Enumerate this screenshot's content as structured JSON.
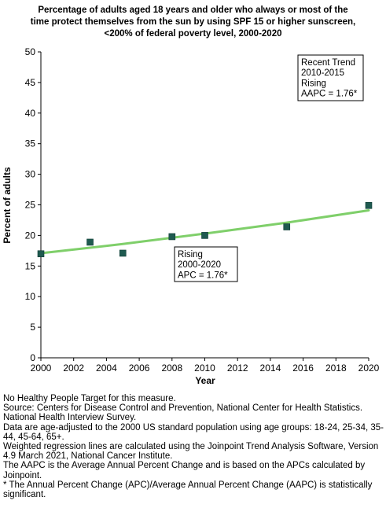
{
  "chart_data": {
    "type": "scatter",
    "title_lines": [
      "Percentage of adults aged 18 years and older who always or most of the",
      "time protect themselves from the sun by using SPF 15 or higher sunscreen,",
      "<200% of federal poverty level,  2000-2020"
    ],
    "xlabel": "Year",
    "ylabel": "Percent of adults",
    "xlim": [
      2000,
      2020
    ],
    "ylim": [
      0,
      50
    ],
    "xticks": [
      2000,
      2002,
      2004,
      2006,
      2008,
      2010,
      2012,
      2014,
      2016,
      2018,
      2020
    ],
    "yticks": [
      0,
      5,
      10,
      15,
      20,
      25,
      30,
      35,
      40,
      45,
      50
    ],
    "grid": false,
    "series": [
      {
        "kind": "points",
        "color": "#1f5a50",
        "points": [
          {
            "x": 2000,
            "y": 17.0
          },
          {
            "x": 2003,
            "y": 18.9
          },
          {
            "x": 2005,
            "y": 17.1
          },
          {
            "x": 2008,
            "y": 19.8
          },
          {
            "x": 2010,
            "y": 20.0
          },
          {
            "x": 2015,
            "y": 21.4
          },
          {
            "x": 2020,
            "y": 24.9
          }
        ]
      },
      {
        "kind": "trend",
        "color": "#7fcf6a",
        "points": [
          {
            "x": 2000,
            "y": 17.1
          },
          {
            "x": 2005,
            "y": 18.6
          },
          {
            "x": 2010,
            "y": 20.3
          },
          {
            "x": 2015,
            "y": 22.1
          },
          {
            "x": 2020,
            "y": 24.1
          }
        ]
      }
    ],
    "annotations": [
      {
        "lines": [
          "Recent Trend",
          "2010-2015",
          "Rising",
          "AAPC =  1.76*"
        ],
        "placement": "top-right"
      },
      {
        "lines": [
          "Rising",
          "2000-2020",
          "APC =  1.76*"
        ],
        "placement": "center"
      }
    ]
  },
  "notes": [
    "No Healthy People Target for this measure.",
    "Source: Centers for Disease Control and Prevention, National Center for Health Statistics. National Health Interview Survey.",
    "Data are age-adjusted to the 2000 US standard population using age groups: 18-24, 25-34, 35-44, 45-64, 65+.",
    "Weighted regression lines are calculated using the Joinpoint Trend Analysis Software, Version 4.9 March 2021, National Cancer Institute.",
    "The AAPC is the Average Annual Percent Change and is based on the APCs calculated by Joinpoint.",
    "* The Annual Percent Change (APC)/Average Annual Percent Change (AAPC) is statistically significant."
  ]
}
